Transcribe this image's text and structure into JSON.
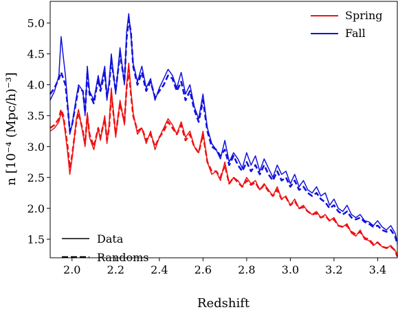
{
  "chart_data": {
    "type": "line",
    "xlabel": "Redshift",
    "ylabel": "n [10⁻⁴ (Mpc/h)⁻³]",
    "xlim": [
      1.9,
      3.49
    ],
    "ylim": [
      1.2,
      5.35
    ],
    "xticks": [
      2.0,
      2.2,
      2.4,
      2.6,
      2.8,
      3.0,
      3.2,
      3.4
    ],
    "xtick_labels": [
      "2.0",
      "2.2",
      "2.4",
      "2.6",
      "2.8",
      "3.0",
      "3.2",
      "3.4"
    ],
    "yticks": [
      1.5,
      2.0,
      2.5,
      3.0,
      3.5,
      4.0,
      4.5,
      5.0
    ],
    "ytick_labels": [
      "1.5",
      "2.0",
      "2.5",
      "3.0",
      "3.5",
      "4.0",
      "4.5",
      "5.0"
    ],
    "grid": false,
    "legend_colors": {
      "position": "top-right",
      "entries": [
        {
          "label": "Spring",
          "color": "#ee1111"
        },
        {
          "label": "Fall",
          "color": "#1111dd"
        }
      ]
    },
    "legend_styles": {
      "position": "bottom-left",
      "entries": [
        {
          "label": "Data",
          "dash": "solid"
        },
        {
          "label": "Randoms",
          "dash": "dashed"
        }
      ]
    },
    "series": [
      {
        "name": "Fall",
        "color": "#1111dd",
        "dash": "solid",
        "x": [
          1.9,
          1.92,
          1.94,
          1.95,
          1.96,
          1.97,
          1.98,
          1.99,
          2.0,
          2.02,
          2.03,
          2.05,
          2.06,
          2.07,
          2.08,
          2.1,
          2.12,
          2.13,
          2.15,
          2.16,
          2.17,
          2.18,
          2.2,
          2.22,
          2.24,
          2.25,
          2.26,
          2.27,
          2.28,
          2.3,
          2.32,
          2.34,
          2.36,
          2.38,
          2.4,
          2.42,
          2.44,
          2.46,
          2.48,
          2.5,
          2.52,
          2.54,
          2.56,
          2.58,
          2.6,
          2.62,
          2.64,
          2.66,
          2.68,
          2.7,
          2.72,
          2.74,
          2.76,
          2.78,
          2.8,
          2.82,
          2.84,
          2.86,
          2.88,
          2.9,
          2.92,
          2.94,
          2.96,
          2.98,
          3.0,
          3.02,
          3.04,
          3.06,
          3.08,
          3.1,
          3.12,
          3.14,
          3.16,
          3.18,
          3.2,
          3.22,
          3.24,
          3.26,
          3.28,
          3.3,
          3.32,
          3.34,
          3.36,
          3.38,
          3.4,
          3.42,
          3.44,
          3.46,
          3.48,
          3.49
        ],
        "y": [
          3.75,
          3.9,
          4.15,
          4.78,
          4.45,
          4.15,
          3.7,
          3.2,
          3.35,
          3.8,
          4.0,
          3.9,
          3.5,
          4.3,
          3.9,
          3.75,
          4.15,
          3.95,
          4.3,
          3.75,
          4.05,
          4.5,
          3.85,
          4.6,
          4.0,
          4.85,
          5.15,
          4.8,
          4.35,
          4.05,
          4.3,
          3.95,
          4.1,
          3.75,
          3.95,
          4.1,
          4.25,
          4.15,
          3.95,
          4.2,
          3.85,
          4.0,
          3.65,
          3.45,
          3.85,
          3.3,
          3.05,
          2.95,
          2.8,
          3.1,
          2.75,
          2.9,
          2.8,
          2.65,
          2.9,
          2.7,
          2.85,
          2.6,
          2.8,
          2.65,
          2.5,
          2.7,
          2.55,
          2.6,
          2.4,
          2.55,
          2.35,
          2.45,
          2.3,
          2.25,
          2.35,
          2.2,
          2.25,
          2.05,
          2.15,
          2.0,
          1.95,
          2.05,
          1.9,
          1.85,
          1.9,
          1.8,
          1.78,
          1.72,
          1.8,
          1.7,
          1.65,
          1.72,
          1.6,
          1.45
        ]
      },
      {
        "name": "Fall",
        "color": "#1111dd",
        "dash": "dashed",
        "x": [
          1.9,
          1.92,
          1.94,
          1.95,
          1.96,
          1.97,
          1.98,
          1.99,
          2.0,
          2.02,
          2.03,
          2.05,
          2.06,
          2.07,
          2.08,
          2.1,
          2.12,
          2.13,
          2.15,
          2.16,
          2.17,
          2.18,
          2.2,
          2.22,
          2.24,
          2.25,
          2.26,
          2.27,
          2.28,
          2.3,
          2.32,
          2.34,
          2.36,
          2.38,
          2.4,
          2.42,
          2.44,
          2.46,
          2.48,
          2.5,
          2.52,
          2.54,
          2.56,
          2.58,
          2.6,
          2.62,
          2.64,
          2.66,
          2.68,
          2.7,
          2.72,
          2.74,
          2.76,
          2.78,
          2.8,
          2.82,
          2.84,
          2.86,
          2.88,
          2.9,
          2.92,
          2.94,
          2.96,
          2.98,
          3.0,
          3.02,
          3.04,
          3.06,
          3.08,
          3.1,
          3.12,
          3.14,
          3.16,
          3.18,
          3.2,
          3.22,
          3.24,
          3.26,
          3.28,
          3.3,
          3.32,
          3.34,
          3.36,
          3.38,
          3.4,
          3.42,
          3.44,
          3.46,
          3.48,
          3.49
        ],
        "y": [
          3.85,
          3.95,
          4.1,
          4.2,
          4.1,
          4.0,
          3.65,
          3.25,
          3.35,
          3.75,
          3.95,
          3.9,
          3.55,
          4.2,
          3.85,
          3.7,
          4.1,
          3.9,
          4.2,
          3.8,
          4.0,
          4.4,
          3.9,
          4.5,
          4.05,
          4.75,
          5.05,
          4.85,
          4.3,
          4.0,
          4.2,
          3.9,
          4.05,
          3.8,
          3.9,
          4.0,
          4.15,
          4.1,
          3.9,
          4.05,
          3.75,
          3.9,
          3.6,
          3.4,
          3.75,
          3.25,
          3.0,
          2.95,
          2.85,
          2.95,
          2.7,
          2.85,
          2.7,
          2.6,
          2.75,
          2.6,
          2.7,
          2.55,
          2.7,
          2.55,
          2.45,
          2.6,
          2.45,
          2.5,
          2.35,
          2.45,
          2.3,
          2.35,
          2.25,
          2.2,
          2.25,
          2.15,
          2.1,
          2.0,
          2.05,
          1.95,
          1.9,
          1.95,
          1.85,
          1.82,
          1.85,
          1.78,
          1.75,
          1.7,
          1.72,
          1.65,
          1.62,
          1.65,
          1.55,
          1.42
        ]
      },
      {
        "name": "Spring",
        "color": "#ee1111",
        "dash": "solid",
        "x": [
          1.9,
          1.92,
          1.94,
          1.95,
          1.96,
          1.97,
          1.98,
          1.99,
          2.0,
          2.02,
          2.03,
          2.05,
          2.06,
          2.07,
          2.08,
          2.1,
          2.12,
          2.13,
          2.15,
          2.16,
          2.17,
          2.18,
          2.2,
          2.22,
          2.24,
          2.25,
          2.26,
          2.27,
          2.28,
          2.3,
          2.32,
          2.34,
          2.36,
          2.38,
          2.4,
          2.42,
          2.44,
          2.46,
          2.48,
          2.5,
          2.52,
          2.54,
          2.56,
          2.58,
          2.6,
          2.62,
          2.64,
          2.66,
          2.68,
          2.7,
          2.72,
          2.74,
          2.76,
          2.78,
          2.8,
          2.82,
          2.84,
          2.86,
          2.88,
          2.9,
          2.92,
          2.94,
          2.96,
          2.98,
          3.0,
          3.02,
          3.04,
          3.06,
          3.08,
          3.1,
          3.12,
          3.14,
          3.16,
          3.18,
          3.2,
          3.22,
          3.24,
          3.26,
          3.28,
          3.3,
          3.32,
          3.34,
          3.36,
          3.38,
          3.4,
          3.42,
          3.44,
          3.46,
          3.48,
          3.49
        ],
        "y": [
          3.25,
          3.3,
          3.4,
          3.55,
          3.45,
          3.2,
          2.9,
          2.55,
          2.8,
          3.45,
          3.6,
          3.2,
          3.0,
          3.55,
          3.15,
          2.95,
          3.3,
          3.1,
          3.5,
          3.05,
          3.35,
          3.95,
          3.15,
          3.75,
          3.35,
          4.0,
          4.35,
          3.9,
          3.55,
          3.2,
          3.3,
          3.05,
          3.25,
          2.95,
          3.15,
          3.3,
          3.45,
          3.35,
          3.2,
          3.4,
          3.15,
          3.25,
          3.0,
          2.9,
          3.25,
          2.75,
          2.55,
          2.6,
          2.45,
          2.75,
          2.4,
          2.5,
          2.45,
          2.35,
          2.5,
          2.4,
          2.45,
          2.3,
          2.4,
          2.3,
          2.2,
          2.35,
          2.15,
          2.2,
          2.05,
          2.15,
          2.0,
          2.05,
          1.95,
          1.9,
          1.95,
          1.85,
          1.9,
          1.8,
          1.85,
          1.72,
          1.7,
          1.75,
          1.6,
          1.55,
          1.65,
          1.5,
          1.48,
          1.4,
          1.45,
          1.38,
          1.35,
          1.4,
          1.32,
          1.25
        ]
      },
      {
        "name": "Spring",
        "color": "#ee1111",
        "dash": "dashed",
        "x": [
          1.9,
          1.92,
          1.94,
          1.95,
          1.96,
          1.97,
          1.98,
          1.99,
          2.0,
          2.02,
          2.03,
          2.05,
          2.06,
          2.07,
          2.08,
          2.1,
          2.12,
          2.13,
          2.15,
          2.16,
          2.17,
          2.18,
          2.2,
          2.22,
          2.24,
          2.25,
          2.26,
          2.27,
          2.28,
          2.3,
          2.32,
          2.34,
          2.36,
          2.38,
          2.4,
          2.42,
          2.44,
          2.46,
          2.48,
          2.5,
          2.52,
          2.54,
          2.56,
          2.58,
          2.6,
          2.62,
          2.64,
          2.66,
          2.68,
          2.7,
          2.72,
          2.74,
          2.76,
          2.78,
          2.8,
          2.82,
          2.84,
          2.86,
          2.88,
          2.9,
          2.92,
          2.94,
          2.96,
          2.98,
          3.0,
          3.02,
          3.04,
          3.06,
          3.08,
          3.1,
          3.12,
          3.14,
          3.16,
          3.18,
          3.2,
          3.22,
          3.24,
          3.26,
          3.28,
          3.3,
          3.32,
          3.34,
          3.36,
          3.38,
          3.4,
          3.42,
          3.44,
          3.46,
          3.48,
          3.49
        ],
        "y": [
          3.3,
          3.35,
          3.45,
          3.6,
          3.5,
          3.25,
          3.0,
          2.65,
          2.85,
          3.4,
          3.55,
          3.25,
          3.05,
          3.5,
          3.2,
          3.0,
          3.3,
          3.15,
          3.45,
          3.1,
          3.3,
          3.85,
          3.2,
          3.7,
          3.4,
          3.95,
          4.25,
          3.85,
          3.5,
          3.25,
          3.3,
          3.1,
          3.2,
          3.0,
          3.15,
          3.25,
          3.4,
          3.3,
          3.2,
          3.35,
          3.1,
          3.2,
          3.0,
          2.9,
          3.2,
          2.75,
          2.6,
          2.6,
          2.5,
          2.7,
          2.4,
          2.5,
          2.42,
          2.35,
          2.45,
          2.38,
          2.42,
          2.3,
          2.38,
          2.28,
          2.2,
          2.3,
          2.15,
          2.18,
          2.05,
          2.12,
          2.0,
          2.02,
          1.95,
          1.9,
          1.92,
          1.85,
          1.88,
          1.8,
          1.82,
          1.72,
          1.7,
          1.72,
          1.62,
          1.58,
          1.62,
          1.52,
          1.5,
          1.42,
          1.45,
          1.38,
          1.36,
          1.38,
          1.32,
          1.22
        ]
      }
    ]
  }
}
